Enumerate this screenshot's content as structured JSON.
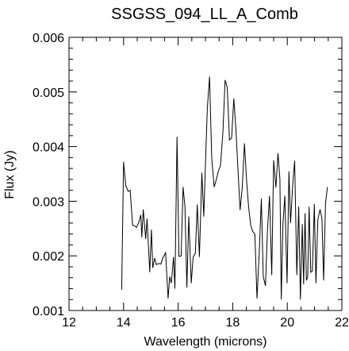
{
  "chart_data": {
    "type": "line",
    "title": "SSGSS_094_LL_A_Comb",
    "xlabel": "Wavelength (microns)",
    "ylabel": "Flux (Jy)",
    "xlim": [
      12,
      22
    ],
    "ylim": [
      0.001,
      0.006
    ],
    "x_ticks": [
      12,
      14,
      16,
      18,
      20,
      22
    ],
    "y_ticks": [
      0.001,
      0.002,
      0.003,
      0.004,
      0.005,
      0.006
    ],
    "x_tick_labels": [
      "12",
      "14",
      "16",
      "18",
      "20",
      "22"
    ],
    "y_tick_labels": [
      "0.001",
      "0.002",
      "0.003",
      "0.004",
      "0.005",
      "0.006"
    ],
    "grid": false,
    "color": "#000000",
    "x": [
      13.93,
      14.0,
      14.08,
      14.17,
      14.24,
      14.33,
      14.41,
      14.47,
      14.56,
      14.63,
      14.67,
      14.72,
      14.81,
      14.86,
      14.96,
      15.02,
      15.07,
      15.14,
      15.2,
      15.29,
      15.37,
      15.43,
      15.54,
      15.63,
      15.69,
      15.75,
      15.83,
      15.88,
      15.96,
      16.03,
      16.11,
      16.18,
      16.25,
      16.32,
      16.39,
      16.48,
      16.55,
      16.63,
      16.7,
      16.78,
      16.87,
      16.94,
      17.01,
      17.07,
      17.15,
      17.23,
      17.32,
      17.4,
      17.47,
      17.55,
      17.64,
      17.72,
      17.8,
      17.88,
      17.96,
      18.04,
      18.12,
      18.2,
      18.27,
      18.35,
      18.43,
      18.51,
      18.58,
      18.66,
      18.73,
      18.81,
      18.89,
      18.97,
      19.05,
      19.12,
      19.2,
      19.27,
      19.35,
      19.43,
      19.5,
      19.58,
      19.66,
      19.73,
      19.78,
      19.84,
      19.91,
      19.99,
      20.06,
      20.12,
      20.2,
      20.27,
      20.35,
      20.42,
      20.48,
      20.55,
      20.6,
      20.65,
      20.7,
      20.75,
      20.8,
      20.86,
      20.92,
      20.99,
      21.05,
      21.12,
      21.2,
      21.27,
      21.33,
      21.4,
      21.47
    ],
    "values": [
      0.00138,
      0.00372,
      0.00328,
      0.00318,
      0.0032,
      0.00256,
      0.00255,
      0.00252,
      0.00262,
      0.00275,
      0.00234,
      0.00285,
      0.00231,
      0.00268,
      0.0017,
      0.00248,
      0.00178,
      0.00196,
      0.00184,
      0.00186,
      0.00185,
      0.00195,
      0.00206,
      0.00122,
      0.00162,
      0.0015,
      0.00198,
      0.0014,
      0.00418,
      0.00199,
      0.002,
      0.00326,
      0.0029,
      0.00142,
      0.00272,
      0.0015,
      0.00198,
      0.00205,
      0.00294,
      0.00198,
      0.00352,
      0.00272,
      0.0038,
      0.0047,
      0.00528,
      0.0038,
      0.00326,
      0.0034,
      0.00355,
      0.00365,
      0.00425,
      0.00522,
      0.00508,
      0.00412,
      0.00416,
      0.00488,
      0.0043,
      0.0035,
      0.00284,
      0.00325,
      0.00406,
      0.00338,
      0.0029,
      0.00256,
      0.00245,
      0.0024,
      0.00122,
      0.00205,
      0.00305,
      0.00162,
      0.00145,
      0.00244,
      0.0031,
      0.00165,
      0.00375,
      0.00325,
      0.00388,
      0.0034,
      0.0012,
      0.00258,
      0.0031,
      0.0015,
      0.00355,
      0.0026,
      0.00332,
      0.00374,
      0.00165,
      0.0029,
      0.0012,
      0.00258,
      0.00148,
      0.00278,
      0.00155,
      0.00162,
      0.0029,
      0.0017,
      0.00172,
      0.00295,
      0.0015,
      0.00266,
      0.00285,
      0.00268,
      0.00155,
      0.00296,
      0.00326
    ]
  }
}
